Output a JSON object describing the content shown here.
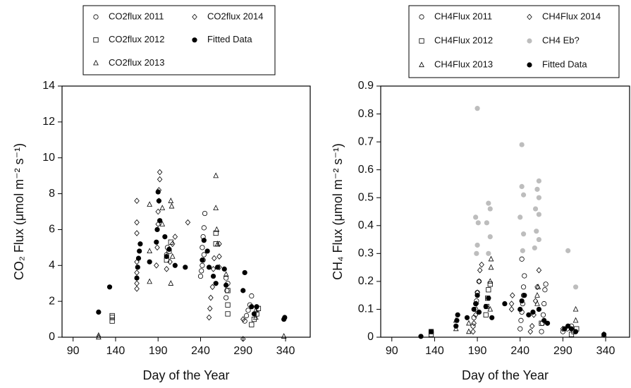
{
  "chart_data": [
    {
      "type": "scatter",
      "xlabel": "Day of the Year",
      "ylabel": "CO₂ Flux (μmol m⁻² s⁻¹)",
      "xlim": [
        77,
        369
      ],
      "ylim": [
        0,
        14
      ],
      "xticks": [
        90,
        140,
        190,
        240,
        290,
        340
      ],
      "yticks": [
        0,
        2,
        4,
        6,
        8,
        10,
        12,
        14
      ],
      "series": [
        {
          "name": "CO2flux 2011",
          "marker": "circle",
          "color": "#000",
          "x": [
            200,
            201,
            240,
            241,
            242,
            243,
            244,
            242,
            243,
            244,
            245,
            270,
            271,
            272,
            270,
            292,
            294,
            296,
            298,
            300
          ],
          "values": [
            4.6,
            5.0,
            3.4,
            3.7,
            4.0,
            4.3,
            4.6,
            5.0,
            5.6,
            6.1,
            6.9,
            2.2,
            2.6,
            3.0,
            3.3,
            0.9,
            1.2,
            1.5,
            1.8,
            2.3
          ]
        },
        {
          "name": "CO2flux 2012",
          "marker": "square",
          "color": "#000",
          "x": [
            136,
            136,
            136,
            200,
            203,
            205,
            258,
            258,
            272,
            272,
            272,
            300,
            303,
            306,
            308
          ],
          "values": [
            0.9,
            1.1,
            1.2,
            4.3,
            4.8,
            5.3,
            5.2,
            5.8,
            1.3,
            1.8,
            2.6,
            0.7,
            1.0,
            1.3,
            1.6
          ]
        },
        {
          "name": "CO2flux 2013",
          "marker": "triangle",
          "color": "#000",
          "x": [
            120,
            120,
            180,
            180,
            180,
            195,
            195,
            205,
            205,
            206,
            207,
            258,
            258,
            259,
            260,
            270,
            305,
            305,
            338
          ],
          "values": [
            0,
            0.1,
            3.1,
            4.8,
            7.4,
            7.2,
            6.3,
            3.0,
            7.6,
            7.3,
            4.5,
            9.0,
            7.2,
            6.0,
            5.2,
            3.5,
            1.5,
            1.1,
            0.05
          ]
        },
        {
          "name": "CO2flux 2014",
          "marker": "diamond",
          "color": "#000",
          "x": [
            165,
            165,
            165,
            165,
            165,
            165,
            165,
            188,
            189,
            190,
            190,
            191,
            191,
            192,
            192,
            200,
            204,
            207,
            210,
            225,
            250,
            251,
            252,
            254,
            255,
            256,
            262,
            262,
            262,
            290,
            290
          ],
          "values": [
            2.7,
            3.0,
            3.6,
            4.2,
            5.8,
            6.4,
            7.6,
            4.0,
            5.0,
            6.3,
            7.0,
            7.6,
            8.2,
            8.8,
            9.2,
            3.8,
            4.2,
            5.2,
            5.6,
            6.4,
            1.1,
            1.6,
            2.2,
            2.8,
            3.8,
            4.4,
            3.9,
            4.5,
            5.2,
            -0.1,
            1.0
          ]
        },
        {
          "name": "Fitted Data",
          "marker": "dot",
          "color": "#000",
          "x": [
            120,
            133,
            165,
            166,
            167,
            168,
            169,
            180,
            188,
            189,
            190,
            191,
            192,
            198,
            200,
            203,
            210,
            222,
            242,
            244,
            248,
            250,
            255,
            258,
            260,
            268,
            270,
            290,
            292,
            300,
            303,
            306,
            338,
            339
          ],
          "values": [
            1.4,
            2.8,
            3.3,
            3.9,
            4.4,
            4.8,
            5.2,
            4.2,
            5.3,
            6.0,
            8.1,
            7.6,
            6.5,
            5.6,
            4.5,
            4.9,
            4.0,
            3.9,
            4.3,
            5.4,
            4.8,
            3.9,
            3.4,
            3.0,
            3.9,
            3.8,
            2.9,
            2.6,
            3.6,
            1.7,
            1.3,
            1.7,
            1.0,
            1.1
          ]
        }
      ]
    },
    {
      "type": "scatter",
      "xlabel": "Day of the Year",
      "ylabel": "CH₄ Flux (μmol m⁻² s⁻¹)",
      "xlim": [
        77,
        368
      ],
      "ylim": [
        0,
        0.9
      ],
      "xticks": [
        90,
        140,
        190,
        240,
        290,
        340
      ],
      "yticks": [
        0,
        0.1,
        0.2,
        0.3,
        0.4,
        0.5,
        0.6,
        0.7,
        0.8,
        0.9
      ],
      "series": [
        {
          "name": "CH4Flux 2011",
          "marker": "circle",
          "color": "#000",
          "x": [
            185,
            186,
            188,
            189,
            190,
            192,
            240,
            241,
            242,
            243,
            244,
            244,
            245,
            242,
            265,
            266,
            267,
            268,
            269,
            270,
            290,
            295,
            300
          ],
          "values": [
            0.04,
            0.07,
            0.1,
            0.13,
            0.16,
            0.2,
            0.03,
            0.06,
            0.09,
            0.12,
            0.15,
            0.18,
            0.22,
            0.28,
            0.02,
            0.05,
            0.08,
            0.12,
            0.17,
            0.19,
            0.02,
            0.03,
            0.04
          ]
        },
        {
          "name": "CH4Flux 2012",
          "marker": "square",
          "color": "#000",
          "x": [
            136,
            136,
            200,
            201,
            202,
            203,
            205,
            265,
            300,
            303,
            306
          ],
          "values": [
            0.01,
            0.02,
            0.08,
            0.11,
            0.14,
            0.17,
            0.19,
            0.05,
            0.01,
            0.02,
            0.03
          ]
        },
        {
          "name": "CH4Flux 2013",
          "marker": "triangle",
          "color": "#000",
          "x": [
            165,
            165,
            180,
            180,
            205,
            205,
            206,
            206,
            260,
            260,
            261,
            305,
            305,
            338
          ],
          "values": [
            0.03,
            0.06,
            0.02,
            0.05,
            0.1,
            0.2,
            0.25,
            0.28,
            0.12,
            0.15,
            0.18,
            0.06,
            0.1,
            0.01
          ]
        },
        {
          "name": "CH4Flux 2014",
          "marker": "diamond",
          "color": "#000",
          "x": [
            185,
            186,
            188,
            189,
            190,
            192,
            193,
            195,
            230,
            230,
            231,
            252,
            254,
            256,
            258,
            260,
            262,
            290
          ],
          "values": [
            0.02,
            0.05,
            0.08,
            0.12,
            0.16,
            0.2,
            0.24,
            0.26,
            0.1,
            0.12,
            0.15,
            0.02,
            0.04,
            0.08,
            0.13,
            0.18,
            0.24,
            0.03
          ]
        },
        {
          "name": "CH4 Eb?",
          "marker": "dot",
          "color": "#bdbdbd",
          "x": [
            190,
            188,
            191,
            190,
            189,
            203,
            205,
            201,
            205,
            203,
            242,
            242,
            244,
            240,
            244,
            243,
            262,
            260,
            262,
            258,
            262,
            259,
            262,
            257,
            296,
            305
          ],
          "values": [
            0.82,
            0.43,
            0.41,
            0.33,
            0.3,
            0.48,
            0.46,
            0.41,
            0.36,
            0.3,
            0.69,
            0.54,
            0.51,
            0.43,
            0.37,
            0.31,
            0.56,
            0.53,
            0.5,
            0.46,
            0.44,
            0.38,
            0.35,
            0.32,
            0.31,
            0.18
          ]
        },
        {
          "name": "Fitted Data",
          "marker": "dot",
          "color": "#000",
          "x": [
            124,
            136,
            165,
            166,
            167,
            178,
            186,
            188,
            190,
            192,
            200,
            203,
            207,
            222,
            240,
            242,
            245,
            250,
            255,
            262,
            268,
            272,
            292,
            296,
            300,
            305,
            338
          ],
          "values": [
            0.003,
            0.02,
            0.04,
            0.06,
            0.08,
            0.07,
            0.1,
            0.12,
            0.15,
            0.09,
            0.11,
            0.14,
            0.07,
            0.12,
            0.1,
            0.13,
            0.15,
            0.08,
            0.09,
            0.1,
            0.06,
            0.05,
            0.03,
            0.04,
            0.03,
            0.02,
            0.01
          ]
        }
      ]
    }
  ]
}
